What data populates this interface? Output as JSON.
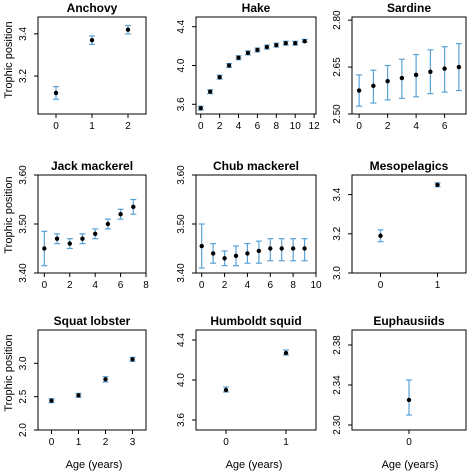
{
  "figure": {
    "ylabel": "Trophic position",
    "xlabel": "Age (years)"
  },
  "chart_data": [
    {
      "type": "scatter",
      "title": "Anchovy",
      "x": [
        0,
        1,
        2
      ],
      "y": [
        3.12,
        3.37,
        3.42
      ],
      "err_low": [
        3.09,
        3.35,
        3.4
      ],
      "err_high": [
        3.15,
        3.39,
        3.44
      ],
      "xlim": [
        -0.5,
        2.5
      ],
      "ylim": [
        3.02,
        3.48
      ],
      "xticks": [
        0,
        1,
        2
      ],
      "yticks": [
        3.2,
        3.4
      ],
      "ytick_labels": [
        "3.2",
        "3.4"
      ]
    },
    {
      "type": "scatter",
      "title": "Hake",
      "x": [
        0,
        1,
        2,
        3,
        4,
        5,
        6,
        7,
        8,
        9,
        10,
        11
      ],
      "y": [
        3.56,
        3.73,
        3.88,
        4.0,
        4.08,
        4.13,
        4.16,
        4.19,
        4.21,
        4.23,
        4.23,
        4.25
      ],
      "err_low": [
        3.54,
        3.71,
        3.86,
        3.98,
        4.06,
        4.11,
        4.14,
        4.17,
        4.19,
        4.21,
        4.21,
        4.24
      ],
      "err_high": [
        3.58,
        3.75,
        3.9,
        4.02,
        4.1,
        4.15,
        4.18,
        4.21,
        4.23,
        4.25,
        4.25,
        4.27
      ],
      "xlim": [
        -0.5,
        12.2
      ],
      "ylim": [
        3.5,
        4.5
      ],
      "xticks": [
        0,
        2,
        4,
        6,
        8,
        10,
        12
      ],
      "yticks": [
        3.6,
        4.0,
        4.4
      ],
      "ytick_labels": [
        "3.6",
        "4.0",
        "4.4"
      ]
    },
    {
      "type": "scatter",
      "title": "Sardine",
      "x": [
        0,
        1,
        2,
        3,
        4,
        5,
        6,
        7
      ],
      "y": [
        2.575,
        2.59,
        2.605,
        2.615,
        2.625,
        2.635,
        2.645,
        2.65
      ],
      "err_low": [
        2.525,
        2.535,
        2.545,
        2.55,
        2.555,
        2.565,
        2.57,
        2.575
      ],
      "err_high": [
        2.625,
        2.64,
        2.655,
        2.675,
        2.69,
        2.705,
        2.715,
        2.725
      ],
      "xlim": [
        -0.5,
        7.5
      ],
      "ylim": [
        2.5,
        2.81
      ],
      "xticks": [
        0,
        2,
        4,
        6
      ],
      "yticks": [
        2.5,
        2.65,
        2.8
      ],
      "ytick_labels": [
        "2.50",
        "2.65",
        "2.80"
      ]
    },
    {
      "type": "scatter",
      "title": "Jack mackerel",
      "x": [
        0,
        1,
        2,
        3,
        4,
        5,
        6,
        7
      ],
      "y": [
        3.45,
        3.47,
        3.46,
        3.47,
        3.48,
        3.5,
        3.52,
        3.535
      ],
      "err_low": [
        3.415,
        3.46,
        3.45,
        3.46,
        3.47,
        3.49,
        3.51,
        3.52
      ],
      "err_high": [
        3.485,
        3.48,
        3.47,
        3.48,
        3.49,
        3.51,
        3.53,
        3.55
      ],
      "xlim": [
        -0.5,
        8
      ],
      "ylim": [
        3.4,
        3.6
      ],
      "xticks": [
        0,
        2,
        4,
        6,
        8
      ],
      "yticks": [
        3.4,
        3.5,
        3.6
      ],
      "ytick_labels": [
        "3.40",
        "3.50",
        "3.60"
      ]
    },
    {
      "type": "scatter",
      "title": "Chub mackerel",
      "x": [
        0,
        1,
        2,
        3,
        4,
        5,
        6,
        7,
        8,
        9
      ],
      "y": [
        3.455,
        3.44,
        3.43,
        3.435,
        3.44,
        3.445,
        3.45,
        3.45,
        3.45,
        3.45
      ],
      "err_low": [
        3.41,
        3.42,
        3.415,
        3.415,
        3.42,
        3.42,
        3.425,
        3.425,
        3.425,
        3.425
      ],
      "err_high": [
        3.5,
        3.46,
        3.445,
        3.455,
        3.46,
        3.465,
        3.47,
        3.47,
        3.47,
        3.47
      ],
      "xlim": [
        -0.5,
        10
      ],
      "ylim": [
        3.4,
        3.6
      ],
      "xticks": [
        0,
        2,
        4,
        6,
        8,
        10
      ],
      "yticks": [
        3.4,
        3.5,
        3.6
      ],
      "ytick_labels": [
        "3.40",
        "3.50",
        "3.60"
      ]
    },
    {
      "type": "scatter",
      "title": "Mesopelagics",
      "x": [
        0,
        1
      ],
      "y": [
        3.19,
        3.45
      ],
      "err_low": [
        3.16,
        3.44
      ],
      "err_high": [
        3.22,
        3.46
      ],
      "xlim": [
        -0.5,
        1.5
      ],
      "ylim": [
        3.0,
        3.5
      ],
      "xticks": [
        0,
        1
      ],
      "yticks": [
        3.0,
        3.2,
        3.4
      ],
      "ytick_labels": [
        "3.0",
        "3.2",
        "3.4"
      ]
    },
    {
      "type": "scatter",
      "title": "Squat lobster",
      "x": [
        0,
        1,
        2,
        3
      ],
      "y": [
        2.44,
        2.52,
        2.76,
        3.06
      ],
      "err_low": [
        2.41,
        2.49,
        2.72,
        3.03
      ],
      "err_high": [
        2.47,
        2.55,
        2.8,
        3.09
      ],
      "xlim": [
        -0.5,
        3.5
      ],
      "ylim": [
        2.0,
        3.5
      ],
      "xticks": [
        0,
        1,
        2,
        3
      ],
      "yticks": [
        2.0,
        2.5,
        3.0
      ],
      "ytick_labels": [
        "2.0",
        "2.5",
        "3.0"
      ]
    },
    {
      "type": "scatter",
      "title": "Humboldt squid",
      "x": [
        0,
        1
      ],
      "y": [
        3.9,
        4.27
      ],
      "err_low": [
        3.88,
        4.25
      ],
      "err_high": [
        3.93,
        4.3
      ],
      "xlim": [
        -0.5,
        1.5
      ],
      "ylim": [
        3.5,
        4.5
      ],
      "xticks": [
        0,
        1
      ],
      "yticks": [
        3.6,
        4.0,
        4.4
      ],
      "ytick_labels": [
        "3.6",
        "4.0",
        "4.4"
      ]
    },
    {
      "type": "scatter",
      "title": "Euphausiids",
      "x": [
        0
      ],
      "y": [
        2.325
      ],
      "err_low": [
        2.31
      ],
      "err_high": [
        2.345
      ],
      "xlim": [
        -0.5,
        0.5
      ],
      "ylim": [
        2.295,
        2.395
      ],
      "xticks": [
        0
      ],
      "yticks": [
        2.3,
        2.34,
        2.38
      ],
      "ytick_labels": [
        "2.30",
        "2.34",
        "2.38"
      ]
    }
  ]
}
